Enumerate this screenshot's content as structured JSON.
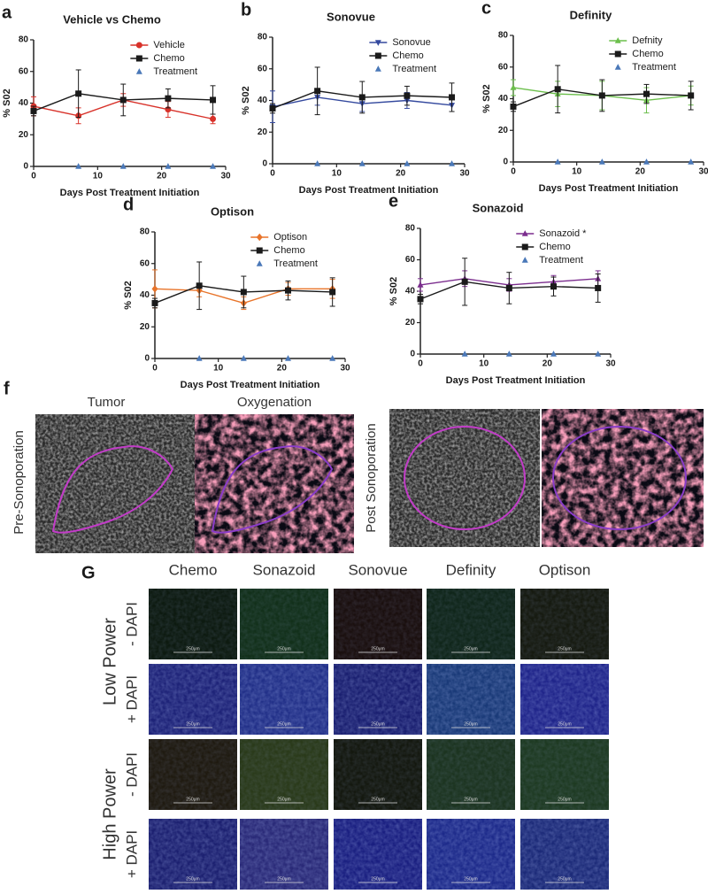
{
  "chart_data": [
    {
      "type": "line",
      "label": "a",
      "title": "Vehicle vs Chemo",
      "xlabel": "Days Post Treatment Initiation",
      "ylabel": "% S02",
      "x": [
        0,
        7,
        14,
        21,
        28
      ],
      "xlim": [
        0,
        30
      ],
      "xticks": [
        0,
        10,
        20,
        30
      ],
      "ylim": [
        0,
        80
      ],
      "yticks": [
        0,
        20,
        40,
        60,
        80
      ],
      "series": [
        {
          "name": "Vehicle",
          "color": "#d8322a",
          "marker": "circle",
          "values": [
            38,
            32,
            42,
            36,
            30
          ],
          "errors": [
            6,
            5,
            4,
            5,
            3
          ]
        },
        {
          "name": "Chemo",
          "color": "#1a1a1a",
          "marker": "square",
          "values": [
            35,
            46,
            42,
            43,
            42
          ],
          "errors": [
            3,
            15,
            10,
            6,
            9
          ]
        },
        {
          "name": "Treatment",
          "color": "#4a78b8",
          "marker": "triangle",
          "line": false,
          "x": [
            7,
            14,
            21,
            28
          ],
          "values": [
            0,
            0,
            0,
            0
          ]
        }
      ]
    },
    {
      "type": "line",
      "label": "b",
      "title": "Sonovue",
      "xlabel": "Days Post Treatment Initiation",
      "ylabel": "% S02",
      "x": [
        0,
        7,
        14,
        21,
        28
      ],
      "xlim": [
        0,
        30
      ],
      "xticks": [
        0,
        10,
        20,
        30
      ],
      "ylim": [
        0,
        80
      ],
      "yticks": [
        0,
        20,
        40,
        60,
        80
      ],
      "series": [
        {
          "name": "Sonovue",
          "color": "#34499e",
          "marker": "triangle-down",
          "values": [
            36,
            42,
            38,
            40,
            37
          ],
          "errors": [
            10,
            5,
            5,
            5,
            4
          ]
        },
        {
          "name": "Chemo",
          "color": "#1a1a1a",
          "marker": "square",
          "values": [
            35,
            46,
            42,
            43,
            42
          ],
          "errors": [
            3,
            15,
            10,
            6,
            9
          ]
        },
        {
          "name": "Treatment",
          "color": "#4a78b8",
          "marker": "triangle",
          "line": false,
          "x": [
            7,
            14,
            21,
            28
          ],
          "values": [
            0,
            0,
            0,
            0
          ]
        }
      ]
    },
    {
      "type": "line",
      "label": "c",
      "title": "Definity",
      "xlabel": "Days Post Treatment Initiation",
      "ylabel": "% S02",
      "x": [
        0,
        7,
        14,
        21,
        28
      ],
      "xlim": [
        0,
        30
      ],
      "xticks": [
        0,
        10,
        20,
        30
      ],
      "ylim": [
        0,
        80
      ],
      "yticks": [
        0,
        20,
        40,
        60,
        80
      ],
      "series": [
        {
          "name": "Defnity",
          "color": "#6cbf4c",
          "marker": "triangle",
          "values": [
            47,
            43,
            42,
            39,
            42
          ],
          "errors": [
            5,
            8,
            9,
            8,
            6
          ]
        },
        {
          "name": "Chemo",
          "color": "#1a1a1a",
          "marker": "square",
          "values": [
            35,
            46,
            42,
            43,
            42
          ],
          "errors": [
            3,
            15,
            10,
            6,
            9
          ]
        },
        {
          "name": "Treatment",
          "color": "#4a78b8",
          "marker": "triangle",
          "line": false,
          "x": [
            7,
            14,
            21,
            28
          ],
          "values": [
            0,
            0,
            0,
            0
          ]
        }
      ]
    },
    {
      "type": "line",
      "label": "d",
      "title": "Optison",
      "xlabel": "Days Post Treatment Initiation",
      "ylabel": "% S02",
      "x": [
        0,
        7,
        14,
        21,
        28
      ],
      "xlim": [
        0,
        30
      ],
      "xticks": [
        0,
        10,
        20,
        30
      ],
      "ylim": [
        0,
        80
      ],
      "yticks": [
        0,
        20,
        40,
        60,
        80
      ],
      "series": [
        {
          "name": "Optison",
          "color": "#e8742a",
          "marker": "diamond",
          "values": [
            44,
            43,
            35,
            44,
            44
          ],
          "errors": [
            12,
            4,
            4,
            4,
            6
          ]
        },
        {
          "name": "Chemo",
          "color": "#1a1a1a",
          "marker": "square",
          "values": [
            35,
            46,
            42,
            43,
            42
          ],
          "errors": [
            3,
            15,
            10,
            6,
            9
          ]
        },
        {
          "name": "Treatment",
          "color": "#4a78b8",
          "marker": "triangle",
          "line": false,
          "x": [
            7,
            14,
            21,
            28
          ],
          "values": [
            0,
            0,
            0,
            0
          ]
        }
      ]
    },
    {
      "type": "line",
      "label": "e",
      "title": "Sonazoid",
      "xlabel": "Days Post Treatment Initiation",
      "ylabel": "% S02",
      "x": [
        0,
        7,
        14,
        21,
        28
      ],
      "xlim": [
        0,
        30
      ],
      "xticks": [
        0,
        10,
        20,
        30
      ],
      "ylim": [
        0,
        80
      ],
      "yticks": [
        0,
        20,
        40,
        60,
        80
      ],
      "series": [
        {
          "name": "Sonazoid *",
          "color": "#7b2d8e",
          "marker": "triangle",
          "values": [
            44,
            48,
            44,
            46,
            48
          ],
          "errors": [
            4,
            5,
            4,
            4,
            5
          ]
        },
        {
          "name": "Chemo",
          "color": "#1a1a1a",
          "marker": "square",
          "values": [
            35,
            46,
            42,
            43,
            42
          ],
          "errors": [
            3,
            15,
            10,
            6,
            9
          ]
        },
        {
          "name": "Treatment",
          "color": "#4a78b8",
          "marker": "triangle",
          "line": false,
          "x": [
            7,
            14,
            21,
            28
          ],
          "values": [
            0,
            0,
            0,
            0
          ]
        }
      ]
    }
  ],
  "panel_f": {
    "label": "f",
    "columns": [
      "Tumor",
      "Oxygenation"
    ],
    "rows": [
      "Pre-Sonoporation",
      "Post Sonoporation"
    ]
  },
  "panel_g": {
    "label": "G",
    "columns": [
      "Chemo",
      "Sonazoid",
      "Sonovue",
      "Definity",
      "Optison"
    ],
    "row_groups": [
      {
        "name": "Low Power",
        "rows": [
          "- DAPI",
          "+ DAPI"
        ]
      },
      {
        "name": "High Power",
        "rows": [
          "- DAPI",
          "+ DAPI"
        ]
      }
    ],
    "scale_bar": "250μm"
  }
}
